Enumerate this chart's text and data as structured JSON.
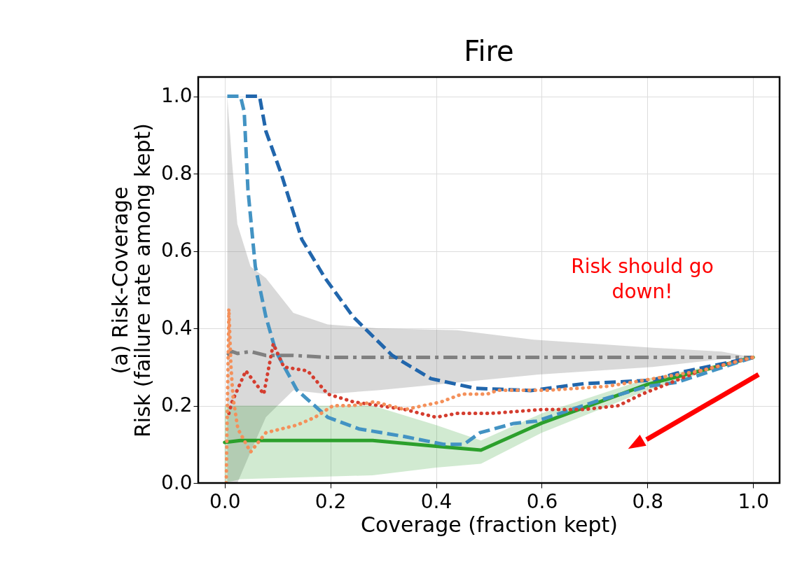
{
  "chart_data": {
    "type": "line",
    "title": "Fire",
    "xlabel": "Coverage (fraction kept)",
    "ylabel": "(a) Risk-Coverage\nRisk (failure rate among kept)",
    "xlim": [
      -0.05,
      1.05
    ],
    "ylim": [
      0,
      1.05
    ],
    "xticks": [
      {
        "value": 0,
        "label": "0.0"
      },
      {
        "value": 0.2,
        "label": "0.2"
      },
      {
        "value": 0.4,
        "label": "0.4"
      },
      {
        "value": 0.6,
        "label": "0.6"
      },
      {
        "value": 0.8,
        "label": "0.8"
      },
      {
        "value": 1,
        "label": "1.0"
      }
    ],
    "yticks": [
      {
        "value": 0,
        "label": "0.0"
      },
      {
        "value": 0.2,
        "label": "0.2"
      },
      {
        "value": 0.4,
        "label": "0.4"
      },
      {
        "value": 0.6,
        "label": "0.6"
      },
      {
        "value": 0.8,
        "label": "0.8"
      },
      {
        "value": 1,
        "label": "1.0"
      }
    ],
    "grid": true,
    "marker": "none",
    "annotations": [
      "Risk should go down!"
    ],
    "series": [
      {
        "color": "#808080",
        "line_style": "dashdot",
        "x": [
          0.005,
          0.014,
          0.024,
          0.049,
          0.078,
          0.13,
          0.195,
          0.29,
          0.44,
          0.59,
          0.81,
          0.94,
          1.0
        ],
        "values": [
          0.33,
          0.34,
          0.335,
          0.34,
          0.33,
          0.33,
          0.325,
          0.325,
          0.325,
          0.325,
          0.325,
          0.325,
          0.325
        ],
        "upper": [
          1.0,
          0.83,
          0.67,
          0.56,
          0.53,
          0.44,
          0.41,
          0.4,
          0.395,
          0.37,
          0.35,
          0.34,
          0.325
        ],
        "lower": [
          0.0,
          0.0,
          0.0,
          0.08,
          0.17,
          0.24,
          0.23,
          0.24,
          0.26,
          0.28,
          0.3,
          0.32,
          0.325
        ]
      },
      {
        "color": "#2ca02c",
        "line_style": "solid",
        "x": [
          0.0,
          0.03,
          0.28,
          0.4,
          0.485,
          0.6,
          0.8,
          1.0
        ],
        "values": [
          0.105,
          0.11,
          0.11,
          0.095,
          0.085,
          0.155,
          0.255,
          0.325
        ],
        "upper": [
          0.2,
          0.2,
          0.2,
          0.15,
          0.11,
          0.18,
          0.27,
          0.325
        ],
        "lower": [
          0.0,
          0.01,
          0.02,
          0.04,
          0.05,
          0.13,
          0.24,
          0.325
        ]
      },
      {
        "color": "#2166ac",
        "line_style": "dashed",
        "x": [
          0.04,
          0.066,
          0.078,
          0.107,
          0.146,
          0.19,
          0.243,
          0.317,
          0.39,
          0.474,
          0.579,
          0.68,
          0.81,
          0.855,
          1.0
        ],
        "values": [
          1.0,
          1.0,
          0.91,
          0.8,
          0.63,
          0.53,
          0.43,
          0.33,
          0.27,
          0.245,
          0.239,
          0.257,
          0.266,
          0.284,
          0.325
        ]
      },
      {
        "color": "#4393c3",
        "line_style": "dashed",
        "x": [
          0.005,
          0.03,
          0.037,
          0.044,
          0.058,
          0.078,
          0.097,
          0.137,
          0.195,
          0.254,
          0.341,
          0.414,
          0.453,
          0.483,
          0.547,
          0.59,
          0.7,
          0.8,
          0.855,
          1.0
        ],
        "values": [
          1.0,
          1.0,
          0.96,
          0.76,
          0.56,
          0.43,
          0.34,
          0.24,
          0.17,
          0.14,
          0.12,
          0.1,
          0.1,
          0.13,
          0.154,
          0.16,
          0.21,
          0.25,
          0.26,
          0.325
        ]
      },
      {
        "color": "#d43d2f",
        "line_style": "dotted",
        "x": [
          0.008,
          0.014,
          0.04,
          0.074,
          0.092,
          0.112,
          0.157,
          0.195,
          0.243,
          0.341,
          0.4,
          0.44,
          0.504,
          0.6,
          0.68,
          0.745,
          0.79,
          0.9,
          1.0
        ],
        "values": [
          0.18,
          0.21,
          0.29,
          0.23,
          0.36,
          0.3,
          0.29,
          0.23,
          0.21,
          0.19,
          0.17,
          0.18,
          0.18,
          0.19,
          0.19,
          0.2,
          0.23,
          0.29,
          0.325
        ]
      },
      {
        "color": "#f4905a",
        "line_style": "dotted",
        "x": [
          0.003,
          0.008,
          0.012,
          0.016,
          0.025,
          0.049,
          0.078,
          0.137,
          0.171,
          0.205,
          0.243,
          0.283,
          0.341,
          0.41,
          0.449,
          0.497,
          0.517,
          0.613,
          0.724,
          0.9,
          1.0
        ],
        "values": [
          0.0,
          0.45,
          0.3,
          0.22,
          0.14,
          0.08,
          0.13,
          0.15,
          0.17,
          0.2,
          0.2,
          0.21,
          0.19,
          0.21,
          0.23,
          0.23,
          0.24,
          0.24,
          0.25,
          0.29,
          0.325
        ]
      }
    ]
  }
}
